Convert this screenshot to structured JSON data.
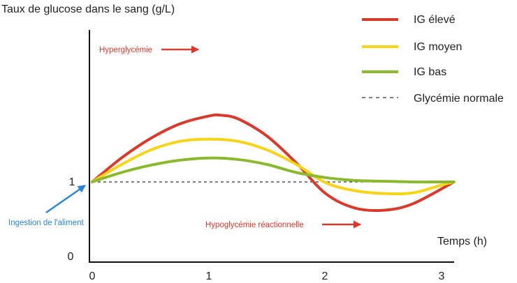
{
  "chart_data": {
    "type": "line",
    "title": "",
    "ylabel": "Taux de glucose dans le sang (g/L)",
    "xlabel": "Temps (h)",
    "xlim": [
      0,
      3.1
    ],
    "ylim": [
      0,
      1.92
    ],
    "x_ticks": [
      "0",
      "1",
      "2",
      "3"
    ],
    "y_ticks": [
      "0",
      "1"
    ],
    "grid": false,
    "legend_position": "top-right",
    "reference_line": {
      "name": "Glycémie normale",
      "y": 1,
      "style": "dashed",
      "color": "#333333"
    },
    "series": [
      {
        "name": "IG élevé",
        "color": "#d93a2b",
        "x": [
          0,
          0.25,
          0.5,
          0.75,
          1.0,
          1.1,
          1.25,
          1.5,
          1.75,
          2.0,
          2.25,
          2.5,
          2.75,
          3.1
        ],
        "y": [
          1.0,
          1.33,
          1.6,
          1.8,
          1.91,
          1.92,
          1.87,
          1.63,
          1.26,
          0.84,
          0.64,
          0.61,
          0.7,
          1.0
        ]
      },
      {
        "name": "IG moyen",
        "color": "#f7d417",
        "x": [
          0,
          0.25,
          0.5,
          0.75,
          1.0,
          1.25,
          1.5,
          1.75,
          2.0,
          2.25,
          2.5,
          2.75,
          3.0,
          3.1
        ],
        "y": [
          1.0,
          1.24,
          1.44,
          1.56,
          1.59,
          1.56,
          1.44,
          1.24,
          0.99,
          0.88,
          0.84,
          0.85,
          0.96,
          1.0
        ]
      },
      {
        "name": "IG bas",
        "color": "#8ab92d",
        "x": [
          0,
          0.25,
          0.5,
          0.75,
          1.0,
          1.25,
          1.5,
          1.75,
          2.0,
          2.25,
          2.5,
          2.75,
          3.0,
          3.1
        ],
        "y": [
          1.0,
          1.13,
          1.23,
          1.3,
          1.33,
          1.31,
          1.24,
          1.13,
          1.06,
          1.02,
          1.01,
          1.0,
          1.0,
          1.0
        ]
      }
    ],
    "annotations": [
      {
        "text": "Hyperglycémie",
        "color": "#d93a2b",
        "points_to": "IG élevé peak"
      },
      {
        "text": "Hypoglycémie réactionnelle",
        "color": "#d93a2b",
        "points_to": "IG élevé minimum"
      },
      {
        "text": "Ingestion de l'aliment",
        "color": "#2b84d6",
        "points_to": "start point (0, 1)"
      }
    ]
  }
}
